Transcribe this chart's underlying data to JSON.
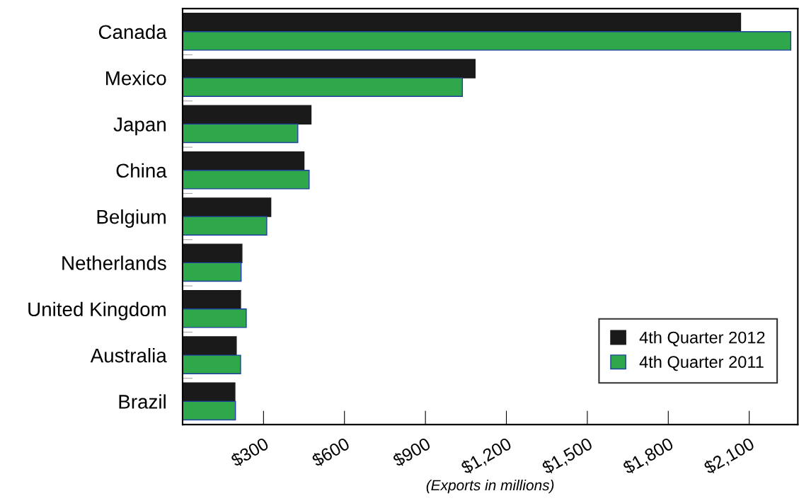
{
  "chart_data": {
    "type": "bar",
    "orientation": "horizontal",
    "xlabel": "(Exports in millions)",
    "categories": [
      "Canada",
      "Mexico",
      "Japan",
      "China",
      "Belgium",
      "Netherlands",
      "United Kingdom",
      "Australia",
      "Brazil"
    ],
    "series": [
      {
        "name": "4th Quarter 2012",
        "color": "#1a1a1a",
        "values": [
          2068,
          1084,
          476,
          450,
          327,
          220,
          215,
          199,
          194
        ]
      },
      {
        "name": "4th Quarter 2011",
        "color": "#2ea84a",
        "values": [
          2254,
          1037,
          427,
          469,
          312,
          217,
          236,
          215,
          196
        ]
      }
    ],
    "xlim": [
      0,
      2280
    ],
    "xticks": [
      {
        "value": 300,
        "label": "$300"
      },
      {
        "value": 600,
        "label": "$600"
      },
      {
        "value": 900,
        "label": "$900"
      },
      {
        "value": 1200,
        "label": "$1,200"
      },
      {
        "value": 1500,
        "label": "$1,500"
      },
      {
        "value": 1800,
        "label": "$1,800"
      },
      {
        "value": 2100,
        "label": "$2,100"
      }
    ],
    "grid": false,
    "legend": "bottom right"
  }
}
